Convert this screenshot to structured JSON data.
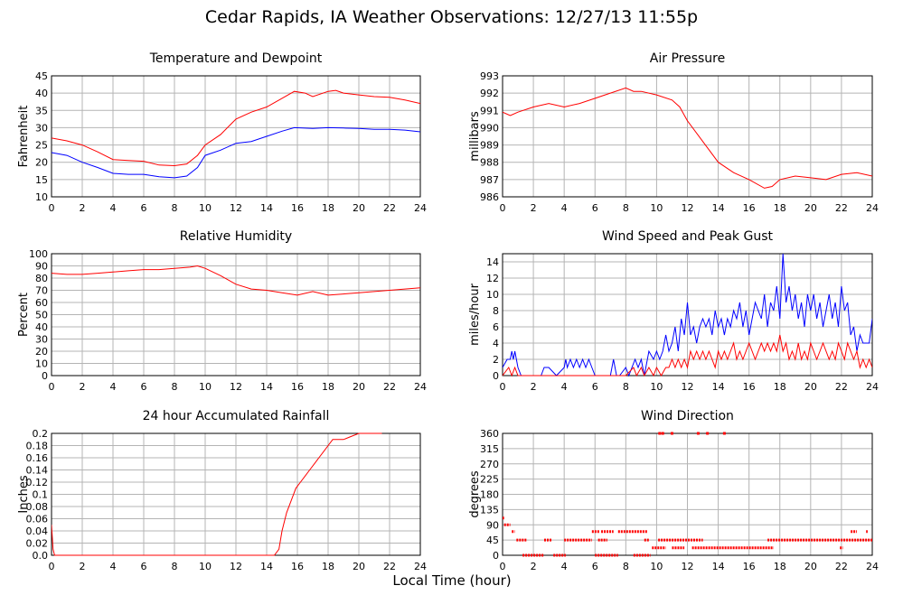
{
  "title": "Cedar Rapids, IA Weather Observations: 12/27/13 11:55p",
  "xlabel": "Local Time (hour)",
  "colors": {
    "red": "#ff0000",
    "blue": "#0000ff",
    "grid": "#b4b4b4"
  },
  "chart_data": [
    {
      "id": "temp",
      "type": "line",
      "title": "Temperature and Dewpoint",
      "ylabel": "Fahrenheit",
      "xlim": [
        0,
        24
      ],
      "ylim": [
        10,
        45
      ],
      "yticks": [
        10,
        15,
        20,
        25,
        30,
        35,
        40,
        45
      ],
      "xticks": [
        0,
        2,
        4,
        6,
        8,
        10,
        12,
        14,
        16,
        18,
        20,
        22,
        24
      ],
      "series": [
        {
          "color": "#ff0000",
          "x": [
            0,
            1,
            2,
            3,
            4,
            5,
            6,
            7,
            8,
            8.8,
            9.5,
            10,
            11,
            12,
            13,
            14,
            15,
            15.8,
            16.5,
            17,
            18,
            18.5,
            19,
            20,
            21,
            22,
            23,
            24
          ],
          "y": [
            27,
            26.2,
            25,
            23,
            20.8,
            20.5,
            20.3,
            19.2,
            19,
            19.5,
            22,
            25,
            28,
            32.5,
            34.5,
            36,
            38.5,
            40.5,
            40,
            39,
            40.5,
            40.8,
            40,
            39.5,
            39,
            38.8,
            38,
            37
          ]
        },
        {
          "color": "#0000ff",
          "x": [
            0,
            1,
            2,
            3,
            4,
            5,
            6,
            7,
            8,
            8.8,
            9.5,
            10,
            11,
            12,
            13,
            14,
            15,
            15.8,
            17,
            18,
            19,
            20,
            21,
            22,
            23,
            24
          ],
          "y": [
            22.8,
            22,
            20,
            18.5,
            16.8,
            16.5,
            16.5,
            15.8,
            15.5,
            16,
            18.5,
            22,
            23.5,
            25.5,
            26,
            27.5,
            29,
            30,
            29.8,
            30,
            29.9,
            29.8,
            29.5,
            29.5,
            29.3,
            28.8
          ]
        }
      ]
    },
    {
      "id": "pressure",
      "type": "line",
      "title": "Air Pressure",
      "ylabel": "millibars",
      "xlim": [
        0,
        24
      ],
      "ylim": [
        986,
        993
      ],
      "yticks": [
        986,
        987,
        988,
        989,
        990,
        991,
        992,
        993
      ],
      "xticks": [
        0,
        2,
        4,
        6,
        8,
        10,
        12,
        14,
        16,
        18,
        20,
        22,
        24
      ],
      "series": [
        {
          "color": "#ff0000",
          "x": [
            0,
            0.5,
            1,
            2,
            3,
            4,
            5,
            6,
            7,
            8,
            8.5,
            9,
            10,
            11,
            11.5,
            12,
            13,
            14,
            15,
            16,
            17,
            17.5,
            18,
            19,
            20,
            21,
            22,
            23,
            24
          ],
          "y": [
            990.9,
            990.7,
            990.9,
            991.2,
            991.4,
            991.2,
            991.4,
            991.7,
            992.0,
            992.3,
            992.1,
            992.1,
            991.9,
            991.6,
            991.2,
            990.4,
            989.2,
            988.0,
            987.4,
            987.0,
            986.5,
            986.6,
            987.0,
            987.2,
            987.1,
            987.0,
            987.3,
            987.4,
            987.2
          ]
        }
      ]
    },
    {
      "id": "humidity",
      "type": "line",
      "title": "Relative Humidity",
      "ylabel": "Percent",
      "xlim": [
        0,
        24
      ],
      "ylim": [
        0,
        100
      ],
      "yticks": [
        0,
        10,
        20,
        30,
        40,
        50,
        60,
        70,
        80,
        90,
        100
      ],
      "xticks": [
        0,
        2,
        4,
        6,
        8,
        10,
        12,
        14,
        16,
        18,
        20,
        22,
        24
      ],
      "series": [
        {
          "color": "#ff0000",
          "x": [
            0,
            1,
            2,
            3,
            4,
            5,
            6,
            7,
            8,
            9,
            9.5,
            10,
            11,
            12,
            13,
            14,
            15,
            16,
            17,
            18,
            19,
            20,
            21,
            22,
            23,
            24
          ],
          "y": [
            84,
            83,
            83,
            84,
            85,
            86,
            87,
            87,
            88,
            89,
            90,
            88,
            82,
            75,
            71,
            70,
            68,
            66,
            69,
            66,
            67,
            68,
            69,
            70,
            71,
            72
          ]
        }
      ]
    },
    {
      "id": "wind",
      "type": "line",
      "title": "Wind Speed and Peak Gust",
      "ylabel": "miles/hour",
      "xlim": [
        0,
        24
      ],
      "ylim": [
        0,
        15
      ],
      "yticks": [
        0,
        2,
        4,
        6,
        8,
        10,
        12,
        14
      ],
      "xticks": [
        0,
        2,
        4,
        6,
        8,
        10,
        12,
        14,
        16,
        18,
        20,
        22,
        24
      ],
      "series": [
        {
          "color": "#0000ff",
          "x": [
            0,
            0.3,
            0.5,
            0.6,
            0.7,
            0.8,
            0.9,
            1.0,
            1.2,
            1.5,
            2,
            2.5,
            2.7,
            3,
            3.5,
            4,
            4.1,
            4.2,
            4.4,
            4.6,
            4.8,
            5,
            5.2,
            5.4,
            5.6,
            5.8,
            6,
            6.2,
            6.5,
            7,
            7.2,
            7.4,
            7.6,
            8,
            8.2,
            8.4,
            8.6,
            8.8,
            9,
            9.2,
            9.5,
            9.8,
            10,
            10.2,
            10.4,
            10.6,
            10.8,
            11,
            11.2,
            11.4,
            11.6,
            11.8,
            12,
            12.2,
            12.4,
            12.6,
            12.8,
            13,
            13.2,
            13.4,
            13.6,
            13.8,
            14,
            14.2,
            14.4,
            14.6,
            14.8,
            15,
            15.2,
            15.4,
            15.6,
            15.8,
            16,
            16.2,
            16.4,
            16.6,
            16.8,
            17,
            17.2,
            17.4,
            17.6,
            17.8,
            18,
            18.2,
            18.4,
            18.6,
            18.8,
            19,
            19.2,
            19.4,
            19.6,
            19.8,
            20,
            20.2,
            20.4,
            20.6,
            20.8,
            21,
            21.2,
            21.4,
            21.6,
            21.8,
            22,
            22.2,
            22.4,
            22.6,
            22.8,
            23,
            23.2,
            23.4,
            23.6,
            23.8,
            24
          ],
          "y": [
            1,
            2,
            2,
            3,
            2,
            3,
            2,
            1,
            0,
            0,
            0,
            0,
            1,
            1,
            0,
            1,
            2,
            1,
            2,
            1,
            2,
            1,
            2,
            1,
            2,
            1,
            0,
            0,
            0,
            0,
            2,
            0,
            0,
            1,
            0,
            1,
            2,
            1,
            2,
            0,
            3,
            2,
            3,
            2,
            3,
            5,
            3,
            4,
            6,
            3,
            7,
            5,
            9,
            5,
            6,
            4,
            6,
            7,
            6,
            7,
            5,
            8,
            6,
            7,
            5,
            7,
            6,
            8,
            7,
            9,
            6,
            8,
            5,
            7,
            9,
            8,
            7,
            10,
            6,
            9,
            8,
            11,
            7,
            15,
            9,
            11,
            8,
            10,
            7,
            9,
            6,
            10,
            8,
            10,
            7,
            9,
            6,
            8,
            10,
            7,
            9,
            6,
            11,
            8,
            9,
            5,
            6,
            3,
            5,
            4,
            4,
            4,
            7
          ]
        },
        {
          "color": "#ff0000",
          "x": [
            0,
            0.4,
            0.6,
            0.8,
            1.0,
            1.2,
            2,
            3,
            4,
            5,
            6,
            7,
            8,
            8.5,
            8.7,
            9,
            9.2,
            9.5,
            9.8,
            10,
            10.3,
            10.6,
            10.8,
            11,
            11.2,
            11.4,
            11.6,
            11.8,
            12,
            12.2,
            12.4,
            12.6,
            12.8,
            13,
            13.2,
            13.4,
            13.6,
            13.8,
            14,
            14.2,
            14.4,
            14.6,
            14.8,
            15,
            15.2,
            15.4,
            15.6,
            15.8,
            16,
            16.2,
            16.4,
            16.6,
            16.8,
            17,
            17.2,
            17.4,
            17.6,
            17.8,
            18,
            18.2,
            18.4,
            18.6,
            18.8,
            19,
            19.2,
            19.4,
            19.6,
            19.8,
            20,
            20.2,
            20.4,
            20.6,
            20.8,
            21,
            21.2,
            21.4,
            21.6,
            21.8,
            22,
            22.2,
            22.4,
            22.6,
            22.8,
            23,
            23.2,
            23.4,
            23.6,
            23.8,
            24
          ],
          "y": [
            0,
            1,
            0,
            1,
            0,
            0,
            0,
            0,
            0,
            0,
            0,
            0,
            0,
            1,
            0,
            1,
            0,
            1,
            0,
            1,
            0,
            1,
            1,
            2,
            1,
            2,
            1,
            2,
            1,
            3,
            2,
            3,
            2,
            3,
            2,
            3,
            2,
            1,
            3,
            2,
            3,
            2,
            3,
            4,
            2,
            3,
            2,
            3,
            4,
            3,
            2,
            3,
            4,
            3,
            4,
            3,
            4,
            3,
            5,
            3,
            4,
            2,
            3,
            2,
            4,
            2,
            3,
            2,
            4,
            3,
            2,
            3,
            4,
            3,
            2,
            3,
            2,
            4,
            3,
            2,
            4,
            3,
            2,
            3,
            1,
            2,
            1,
            2,
            1
          ]
        }
      ]
    },
    {
      "id": "rain",
      "type": "line",
      "title": "24 hour Accumulated Rainfall",
      "ylabel": "Inches",
      "xlim": [
        0,
        24
      ],
      "ylim": [
        0,
        0.2
      ],
      "yticks": [
        0.0,
        0.02,
        0.04,
        0.06,
        0.08,
        0.1,
        0.12,
        0.14,
        0.16,
        0.18,
        0.2
      ],
      "yticklabels": [
        "0.0",
        "0.02",
        "0.04",
        "0.06",
        "0.08",
        "0.1",
        "0.12",
        "0.14",
        "0.16",
        "0.18",
        "0.2"
      ],
      "xticks": [
        0,
        2,
        4,
        6,
        8,
        10,
        12,
        14,
        16,
        18,
        20,
        22,
        24
      ],
      "series": [
        {
          "color": "#ff0000",
          "x": [
            0,
            0.1,
            0.2,
            14.5,
            14.8,
            15.0,
            15.3,
            15.6,
            15.9,
            16.2,
            16.5,
            16.8,
            17.1,
            17.4,
            17.7,
            18.0,
            18.3,
            18.6,
            19.0,
            19.5,
            20.0,
            20.5,
            21.5
          ],
          "y": [
            0.05,
            0.01,
            0,
            0,
            0.01,
            0.04,
            0.07,
            0.09,
            0.11,
            0.12,
            0.13,
            0.14,
            0.15,
            0.16,
            0.17,
            0.18,
            0.19,
            0.19,
            0.19,
            0.195,
            0.2,
            0.2,
            0.2
          ]
        }
      ]
    },
    {
      "id": "direction",
      "type": "scatter",
      "title": "Wind Direction",
      "ylabel": "degrees",
      "xlim": [
        0,
        24
      ],
      "ylim": [
        0,
        360
      ],
      "yticks": [
        0,
        45,
        90,
        135,
        180,
        225,
        270,
        315,
        360
      ],
      "xticks": [
        0,
        2,
        4,
        6,
        8,
        10,
        12,
        14,
        16,
        18,
        20,
        22,
        24
      ],
      "segments": [
        {
          "y": 110,
          "x0": 0.0,
          "x1": 0.1
        },
        {
          "y": 90,
          "x0": 0.1,
          "x1": 0.5
        },
        {
          "y": 70,
          "x0": 0.6,
          "x1": 0.8
        },
        {
          "y": 45,
          "x0": 0.9,
          "x1": 1.6
        },
        {
          "y": 0,
          "x0": 1.3,
          "x1": 2.7
        },
        {
          "y": 45,
          "x0": 2.7,
          "x1": 3.2
        },
        {
          "y": 0,
          "x0": 3.3,
          "x1": 4.1
        },
        {
          "y": 45,
          "x0": 4.0,
          "x1": 5.8
        },
        {
          "y": 70,
          "x0": 5.8,
          "x1": 6.3
        },
        {
          "y": 45,
          "x0": 6.2,
          "x1": 6.8
        },
        {
          "y": 70,
          "x0": 6.4,
          "x1": 7.2
        },
        {
          "y": 0,
          "x0": 6.0,
          "x1": 7.5
        },
        {
          "y": 70,
          "x0": 7.5,
          "x1": 9.4
        },
        {
          "y": 0,
          "x0": 8.5,
          "x1": 9.6
        },
        {
          "y": 45,
          "x0": 9.2,
          "x1": 9.5
        },
        {
          "y": 22,
          "x0": 9.7,
          "x1": 10.6
        },
        {
          "y": 45,
          "x0": 10.1,
          "x1": 11.5
        },
        {
          "y": 22,
          "x0": 11.0,
          "x1": 11.8
        },
        {
          "y": 45,
          "x0": 11.5,
          "x1": 13.0
        },
        {
          "y": 22,
          "x0": 12.3,
          "x1": 17.6
        },
        {
          "y": 45,
          "x0": 17.2,
          "x1": 24.0
        },
        {
          "y": 22,
          "x0": 21.9,
          "x1": 22.1
        },
        {
          "y": 70,
          "x0": 22.6,
          "x1": 23.0
        },
        {
          "y": 70,
          "x0": 23.6,
          "x1": 23.7
        }
      ],
      "points": [
        {
          "x": 10.2,
          "y": 360
        },
        {
          "x": 10.4,
          "y": 360
        },
        {
          "x": 11.0,
          "y": 360
        },
        {
          "x": 12.7,
          "y": 360
        },
        {
          "x": 13.3,
          "y": 360
        },
        {
          "x": 14.4,
          "y": 360
        }
      ]
    }
  ]
}
